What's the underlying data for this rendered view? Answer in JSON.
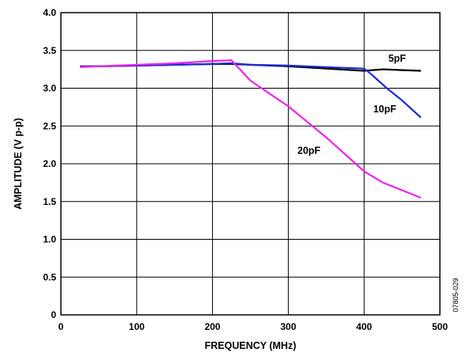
{
  "chart_data": {
    "type": "line",
    "xlabel": "FREQUENCY (MHz)",
    "ylabel": "AMPLITUDE (V p-p)",
    "xlim": [
      0,
      500
    ],
    "ylim": [
      0,
      4.0
    ],
    "xticks": [
      "0",
      "100",
      "200",
      "300",
      "400",
      "500"
    ],
    "yticks": [
      "0",
      "0.5",
      "1.0",
      "1.5",
      "2.0",
      "2.5",
      "3.0",
      "3.5",
      "4.0"
    ],
    "grid": true,
    "figure_id": "07805-029",
    "series": [
      {
        "name": "5pF",
        "color": "#000000",
        "x": [
          25,
          50,
          100,
          150,
          200,
          225,
          250,
          300,
          350,
          400,
          425,
          450,
          475
        ],
        "y": [
          3.29,
          3.29,
          3.3,
          3.31,
          3.32,
          3.32,
          3.31,
          3.29,
          3.26,
          3.23,
          3.25,
          3.24,
          3.23
        ]
      },
      {
        "name": "10pF",
        "color": "#1a2bd6",
        "x": [
          25,
          50,
          100,
          150,
          200,
          225,
          250,
          300,
          350,
          400,
          410,
          430,
          450,
          475
        ],
        "y": [
          3.29,
          3.29,
          3.3,
          3.31,
          3.32,
          3.33,
          3.31,
          3.3,
          3.28,
          3.26,
          3.18,
          3.0,
          2.84,
          2.61
        ]
      },
      {
        "name": "20pF",
        "color": "#ee22ee",
        "x": [
          25,
          50,
          100,
          150,
          200,
          225,
          250,
          300,
          350,
          400,
          425,
          450,
          475
        ],
        "y": [
          3.28,
          3.29,
          3.31,
          3.33,
          3.36,
          3.37,
          3.1,
          2.76,
          2.35,
          1.9,
          1.75,
          1.65,
          1.55
        ]
      }
    ]
  }
}
